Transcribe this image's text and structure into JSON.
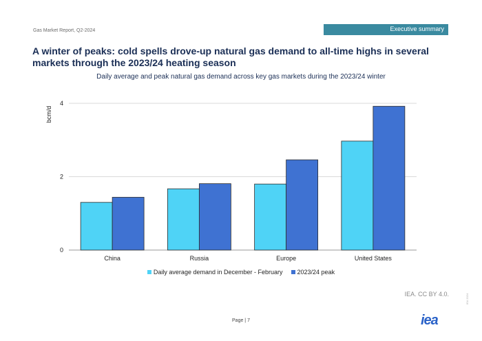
{
  "header": {
    "report": "Gas Market Report, Q2-2024",
    "section": "Executive summary"
  },
  "headline": "A winter of peaks: cold spells drove-up natural gas demand to all-time highs in several markets through the 2023/24 heating season",
  "footer": {
    "source": "IEA. CC BY 4.0.",
    "page": "Page | 7",
    "logo": "iea",
    "code": "IEA 2024"
  },
  "colors": {
    "series_avg": "#4fd3f6",
    "series_peak": "#3f72d2",
    "tab": "#3a8aa0"
  },
  "chart_data": {
    "type": "bar",
    "title": "Daily average and peak natural gas demand across key gas markets during the 2023/24 winter",
    "ylabel": "bcm/d",
    "xlabel": "",
    "ylim": [
      0,
      4
    ],
    "yticks": [
      0,
      2,
      4
    ],
    "categories": [
      "China",
      "Russia",
      "Europe",
      "United States"
    ],
    "series": [
      {
        "name": "Daily average demand in December - February",
        "values": [
          1.3,
          1.67,
          1.8,
          2.97
        ]
      },
      {
        "name": "2023/24 peak",
        "values": [
          1.44,
          1.81,
          2.46,
          3.92
        ]
      }
    ]
  }
}
